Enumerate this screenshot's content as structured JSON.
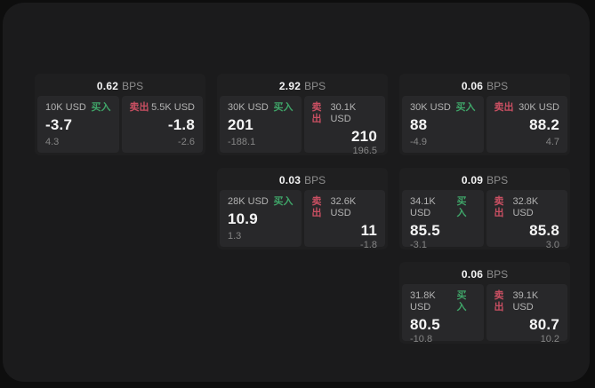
{
  "labels": {
    "bps_unit": "BPS",
    "buy": "买入",
    "sell": "卖出"
  },
  "colors": {
    "buy_green": "#3fa468",
    "sell_red": "#c94f62",
    "panel_background": "#1b1b1c",
    "card_background": "#1f1f20",
    "tile_background": "#28282a"
  },
  "cards": [
    {
      "bps": "0.62",
      "col": 1,
      "row": 1,
      "buy": {
        "size": "10K USD",
        "price": "-3.7",
        "delta": "4.3"
      },
      "sell": {
        "size": "5.5K USD",
        "price": "-1.8",
        "delta": "-2.6"
      }
    },
    {
      "bps": "2.92",
      "col": 2,
      "row": 1,
      "buy": {
        "size": "30K USD",
        "price": "201",
        "delta": "-188.1"
      },
      "sell": {
        "size": "30.1K USD",
        "price": "210",
        "delta": "196.5"
      }
    },
    {
      "bps": "0.06",
      "col": 3,
      "row": 1,
      "buy": {
        "size": "30K USD",
        "price": "88",
        "delta": "-4.9"
      },
      "sell": {
        "size": "30K USD",
        "price": "88.2",
        "delta": "4.7"
      }
    },
    {
      "bps": "0.03",
      "col": 2,
      "row": 2,
      "buy": {
        "size": "28K USD",
        "price": "10.9",
        "delta": "1.3"
      },
      "sell": {
        "size": "32.6K USD",
        "price": "11",
        "delta": "-1.8"
      }
    },
    {
      "bps": "0.09",
      "col": 3,
      "row": 2,
      "buy": {
        "size": "34.1K USD",
        "price": "85.5",
        "delta": "-3.1"
      },
      "sell": {
        "size": "32.8K USD",
        "price": "85.8",
        "delta": "3.0"
      }
    },
    {
      "bps": "0.06",
      "col": 3,
      "row": 3,
      "buy": {
        "size": "31.8K USD",
        "price": "80.5",
        "delta": "-10.8"
      },
      "sell": {
        "size": "39.1K USD",
        "price": "80.7",
        "delta": "10.2"
      }
    }
  ]
}
